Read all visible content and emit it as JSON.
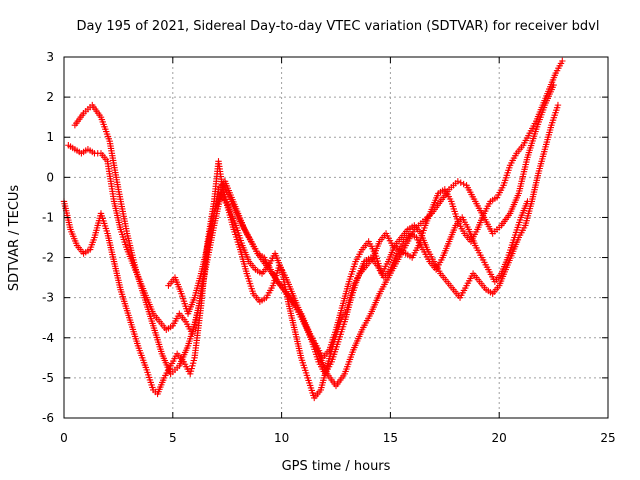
{
  "chart_data": {
    "type": "scatter",
    "title": "Day 195 of 2021, Sidereal Day-to-day VTEC variation (SDTVAR) for receiver bdvl",
    "xlabel": "GPS time / hours",
    "ylabel": "SDTVAR / TECUs",
    "xlim": [
      0,
      25
    ],
    "ylim": [
      -6,
      3
    ],
    "xticks": [
      "0",
      "5",
      "10",
      "15",
      "20",
      "25"
    ],
    "yticks": [
      "-6",
      "-5",
      "-4",
      "-3",
      "-2",
      "-1",
      "0",
      "1",
      "2",
      "3"
    ],
    "grid": true,
    "marker": "+",
    "color": "#ff0000",
    "series": [
      {
        "x": [
          0.0,
          0.3,
          0.6,
          0.9,
          1.2,
          1.4,
          1.7,
          2.0,
          2.3,
          2.6,
          3.0,
          3.4,
          3.8,
          4.1,
          4.3,
          4.6,
          4.9,
          5.2,
          5.5,
          5.8,
          6.0,
          6.3,
          6.6,
          6.9,
          7.1,
          7.3,
          7.6,
          7.9,
          8.2,
          8.5,
          8.8,
          9.1,
          9.4,
          9.7,
          10.0,
          10.3,
          10.6,
          10.9,
          11.2,
          11.5,
          11.8,
          12.1,
          12.4,
          12.7,
          13.0,
          13.3,
          13.6,
          13.9,
          14.2,
          14.5,
          14.8,
          15.1,
          15.4,
          15.7,
          16.0,
          16.3,
          16.6,
          16.9,
          17.2,
          17.5,
          17.8,
          18.1,
          18.4,
          18.7,
          19.0,
          19.3,
          19.6,
          19.9,
          20.2,
          20.5,
          20.8,
          21.1,
          21.4,
          21.7,
          22.0,
          22.3,
          22.6,
          22.9
        ],
        "y": [
          -0.6,
          -1.3,
          -1.7,
          -1.9,
          -1.8,
          -1.5,
          -0.9,
          -1.4,
          -2.1,
          -2.8,
          -3.5,
          -4.2,
          -4.8,
          -5.3,
          -5.4,
          -5.0,
          -4.7,
          -4.4,
          -4.6,
          -4.9,
          -4.5,
          -3.2,
          -1.6,
          -0.6,
          0.4,
          -0.3,
          -0.8,
          -1.2,
          -1.7,
          -2.1,
          -2.3,
          -2.4,
          -2.2,
          -1.9,
          -2.3,
          -3.1,
          -3.8,
          -4.5,
          -5.0,
          -5.5,
          -5.3,
          -4.7,
          -4.1,
          -3.6,
          -3.3,
          -2.7,
          -2.4,
          -2.2,
          -2.0,
          -1.6,
          -1.4,
          -1.7,
          -1.8,
          -1.9,
          -2.0,
          -1.7,
          -1.2,
          -0.8,
          -0.4,
          -0.3,
          -0.6,
          -1.1,
          -1.4,
          -1.6,
          -1.3,
          -0.9,
          -0.6,
          -0.5,
          -0.2,
          0.3,
          0.6,
          0.8,
          1.1,
          1.4,
          1.8,
          2.2,
          2.6,
          2.9
        ]
      },
      {
        "x": [
          0.2,
          0.5,
          0.8,
          1.1,
          1.4,
          1.7,
          2.0,
          2.3,
          2.6,
          2.9,
          3.2,
          3.5,
          3.8,
          4.1,
          4.4,
          4.7,
          5.0,
          5.3,
          5.6,
          5.9,
          6.2,
          6.5,
          6.8,
          7.1,
          7.4,
          7.7,
          8.0,
          8.3,
          8.6,
          8.9,
          9.2,
          9.5,
          9.8,
          10.1,
          10.4,
          10.7,
          11.0,
          11.3,
          11.6,
          11.9,
          12.2,
          12.5,
          12.8,
          13.1,
          13.4,
          13.7,
          14.0,
          14.3,
          14.6,
          14.9,
          15.2,
          15.5,
          15.8,
          16.1,
          16.4,
          16.7,
          17.0,
          17.3,
          17.6,
          17.9,
          18.2,
          18.5,
          18.8,
          19.1,
          19.4,
          19.7,
          20.0,
          20.3,
          20.6,
          20.9,
          21.2,
          21.5,
          21.8,
          22.1,
          22.4,
          22.7
        ],
        "y": [
          0.8,
          0.7,
          0.6,
          0.7,
          0.6,
          0.6,
          0.4,
          -0.6,
          -1.3,
          -1.8,
          -2.2,
          -2.6,
          -3.0,
          -3.4,
          -3.6,
          -3.8,
          -3.7,
          -3.4,
          -3.6,
          -3.9,
          -3.2,
          -2.1,
          -1.2,
          -0.3,
          -0.1,
          -0.5,
          -0.9,
          -1.3,
          -1.6,
          -1.9,
          -2.0,
          -2.3,
          -2.6,
          -2.8,
          -3.0,
          -3.3,
          -3.6,
          -3.9,
          -4.2,
          -4.5,
          -4.3,
          -3.8,
          -3.2,
          -2.6,
          -2.1,
          -1.8,
          -1.6,
          -1.9,
          -2.4,
          -2.1,
          -1.7,
          -1.5,
          -1.3,
          -1.2,
          -1.4,
          -1.8,
          -2.1,
          -2.4,
          -2.6,
          -2.8,
          -3.0,
          -2.7,
          -2.4,
          -2.6,
          -2.8,
          -2.9,
          -2.7,
          -2.3,
          -1.9,
          -1.5,
          -1.2,
          -0.6,
          0.1,
          0.7,
          1.3,
          1.8
        ]
      },
      {
        "x": [
          0.5,
          0.9,
          1.3,
          1.7,
          2.1,
          2.5,
          2.9,
          3.3,
          3.7,
          4.1,
          4.5,
          4.9,
          5.3,
          5.7,
          6.1,
          6.5,
          6.9,
          7.3,
          7.7,
          8.1,
          8.5,
          8.9,
          9.3,
          9.7,
          10.1,
          10.5,
          10.9,
          11.3,
          11.7,
          12.1,
          12.5,
          12.9,
          13.3,
          13.7,
          14.1,
          14.5,
          14.9,
          15.3,
          15.7,
          16.1,
          16.5,
          16.9,
          17.3,
          17.7,
          18.1,
          18.5,
          18.9,
          19.3,
          19.7,
          20.1,
          20.5,
          20.9,
          21.3,
          21.7,
          22.1,
          22.5
        ],
        "y": [
          1.3,
          1.6,
          1.8,
          1.5,
          0.9,
          -0.3,
          -1.4,
          -2.3,
          -3.0,
          -3.7,
          -4.4,
          -4.9,
          -4.7,
          -4.2,
          -3.5,
          -2.3,
          -1.2,
          -0.2,
          -0.6,
          -1.1,
          -1.5,
          -1.9,
          -2.2,
          -2.5,
          -2.8,
          -3.1,
          -3.4,
          -3.9,
          -4.4,
          -4.9,
          -5.2,
          -4.9,
          -4.3,
          -3.8,
          -3.4,
          -2.9,
          -2.5,
          -2.1,
          -1.7,
          -1.3,
          -1.1,
          -0.9,
          -0.6,
          -0.3,
          -0.1,
          -0.2,
          -0.6,
          -1.0,
          -1.4,
          -1.2,
          -0.9,
          -0.4,
          0.5,
          1.2,
          1.8,
          2.3
        ]
      },
      {
        "x": [
          4.8,
          5.1,
          5.4,
          5.7,
          6.0,
          6.3,
          6.6,
          6.9,
          7.2,
          7.5,
          7.8,
          8.1,
          8.4,
          8.7,
          9.0,
          9.3,
          9.6,
          9.9,
          10.2,
          10.5,
          10.8,
          11.1,
          11.4,
          11.7,
          12.0,
          12.3,
          12.6,
          12.9,
          13.2,
          13.5,
          13.8,
          14.1,
          14.4,
          14.7,
          15.0,
          15.3,
          15.6,
          15.9,
          16.2,
          16.5,
          16.8,
          17.1,
          17.4,
          17.7,
          18.0,
          18.3,
          18.6,
          18.9,
          19.2,
          19.5,
          19.8,
          20.1,
          20.4,
          20.7,
          21.0,
          21.3
        ],
        "y": [
          -2.7,
          -2.5,
          -2.9,
          -3.4,
          -3.0,
          -2.4,
          -1.7,
          -0.9,
          -0.4,
          -0.7,
          -1.3,
          -1.8,
          -2.4,
          -2.9,
          -3.1,
          -3.0,
          -2.7,
          -2.2,
          -2.5,
          -2.9,
          -3.3,
          -3.7,
          -4.1,
          -4.6,
          -4.9,
          -4.6,
          -4.1,
          -3.6,
          -3.0,
          -2.5,
          -2.1,
          -2.0,
          -2.2,
          -2.5,
          -2.3,
          -1.9,
          -1.6,
          -1.4,
          -1.5,
          -1.8,
          -2.1,
          -2.3,
          -2.0,
          -1.6,
          -1.2,
          -1.0,
          -1.3,
          -1.7,
          -2.0,
          -2.3,
          -2.6,
          -2.4,
          -2.0,
          -1.5,
          -1.0,
          -0.6
        ]
      }
    ]
  }
}
